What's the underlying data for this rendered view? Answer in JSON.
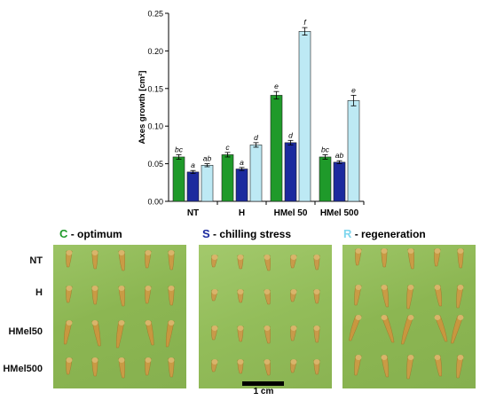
{
  "chart_data": {
    "type": "bar",
    "categories": [
      "NT",
      "H",
      "HMel 50",
      "HMel 500"
    ],
    "ylabel": "Axes growth [cm²]",
    "ylim": [
      0,
      0.25
    ],
    "yticks": [
      "0.00",
      "0.05",
      "0.10",
      "0.15",
      "0.20",
      "0.25"
    ],
    "grid": false,
    "series": [
      {
        "name": "C - optimum",
        "color": "#1f9a2a",
        "values": [
          0.059,
          0.062,
          0.141,
          0.059
        ],
        "errors": [
          0.003,
          0.003,
          0.005,
          0.003
        ],
        "letters": [
          "bc",
          "c",
          "e",
          "bc"
        ]
      },
      {
        "name": "S - chilling stress",
        "color": "#1c2a9e",
        "values": [
          0.039,
          0.043,
          0.078,
          0.052
        ],
        "errors": [
          0.002,
          0.002,
          0.003,
          0.002
        ],
        "letters": [
          "a",
          "a",
          "d",
          "ab"
        ]
      },
      {
        "name": "R - regeneration",
        "color": "#bde9f4",
        "values": [
          0.048,
          0.075,
          0.226,
          0.134
        ],
        "errors": [
          0.002,
          0.003,
          0.005,
          0.007
        ],
        "letters": [
          "ab",
          "d",
          "f",
          "e"
        ]
      }
    ]
  },
  "panels": [
    {
      "letter": "C",
      "text": " - optimum",
      "color": "#1f9a2a"
    },
    {
      "letter": "S",
      "text": " - chilling stress",
      "color": "#1c2a9e"
    },
    {
      "letter": "R",
      "text": " - regeneration",
      "color": "#5cc8e6"
    }
  ],
  "row_labels": [
    "NT",
    "H",
    "HMel50",
    "HMel500"
  ],
  "scale_label": "1 cm"
}
